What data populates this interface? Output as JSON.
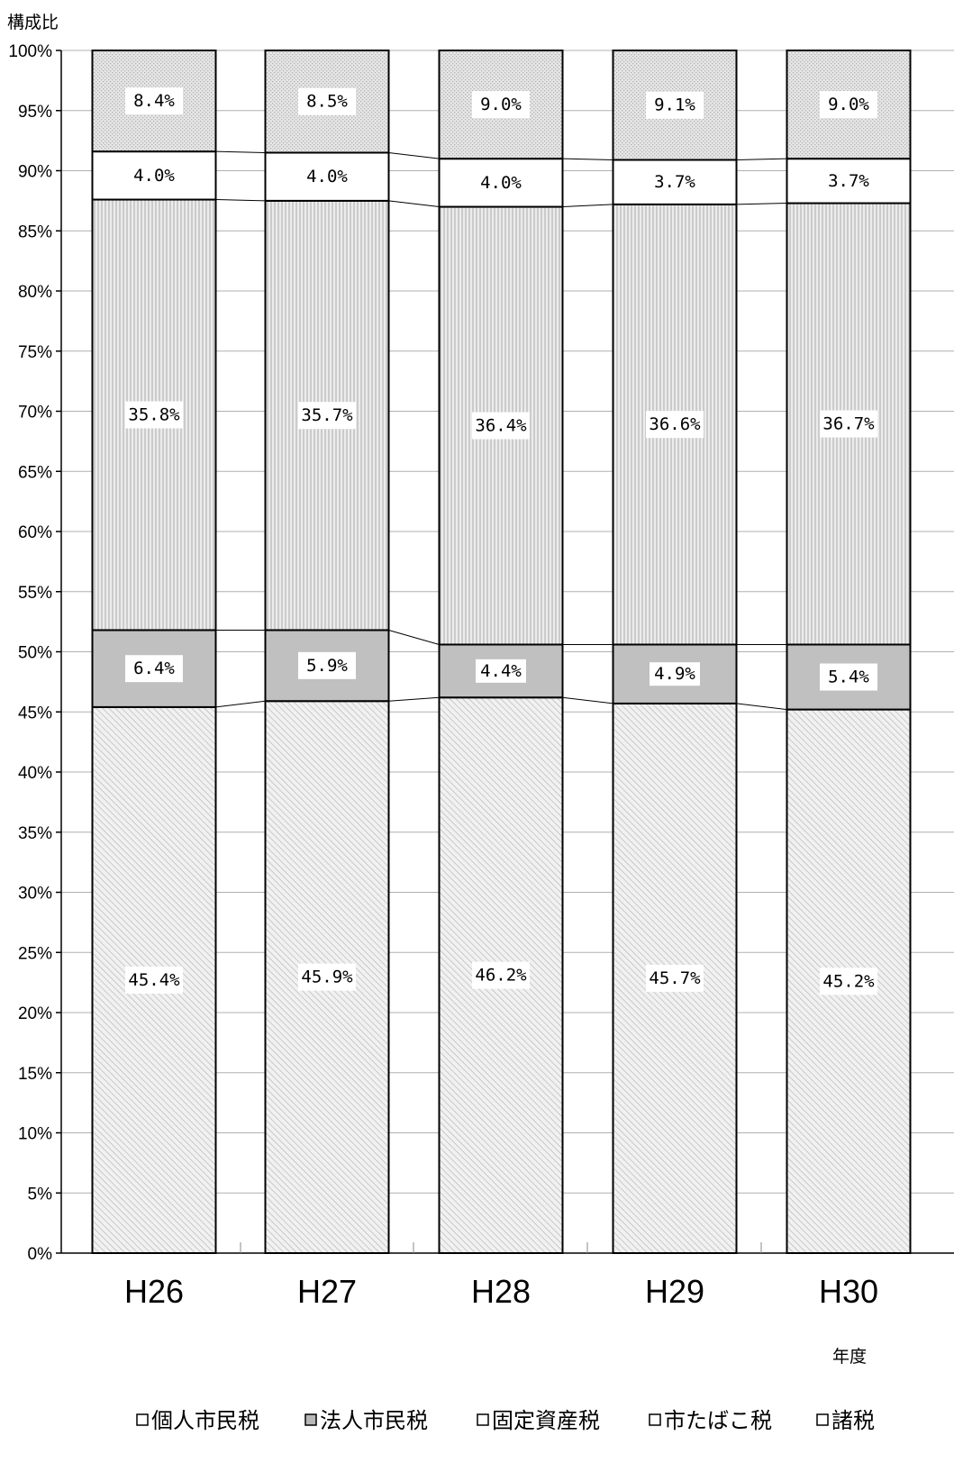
{
  "chart_data": {
    "type": "bar",
    "stacked": true,
    "percent": true,
    "ylabel": "構成比",
    "xlabel": "年度",
    "ylim": [
      0,
      100
    ],
    "yticks": [
      "0%",
      "5%",
      "10%",
      "15%",
      "20%",
      "25%",
      "30%",
      "35%",
      "40%",
      "45%",
      "50%",
      "55%",
      "60%",
      "65%",
      "70%",
      "75%",
      "80%",
      "85%",
      "90%",
      "95%",
      "100%"
    ],
    "grid": true,
    "legend_position": "bottom",
    "categories": [
      "H26",
      "H27",
      "H28",
      "H29",
      "H30"
    ],
    "series": [
      {
        "name": "個人市民税",
        "values": [
          45.4,
          45.9,
          46.2,
          45.7,
          45.2
        ],
        "labels": [
          "45.4%",
          "45.9%",
          "46.2%",
          "45.7%",
          "45.2%"
        ],
        "color": "#e8e8e8",
        "pattern": "diag"
      },
      {
        "name": "法人市民税",
        "values": [
          6.4,
          5.9,
          4.4,
          4.9,
          5.4
        ],
        "labels": [
          "6.4%",
          "5.9%",
          "4.4%",
          "4.9%",
          "5.4%"
        ],
        "color": "#c0c0c0",
        "pattern": "solid"
      },
      {
        "name": "固定資産税",
        "values": [
          35.8,
          35.7,
          36.4,
          36.6,
          36.7
        ],
        "labels": [
          "35.8%",
          "35.7%",
          "36.4%",
          "36.6%",
          "36.7%"
        ],
        "color": "#e4e4e4",
        "pattern": "vert"
      },
      {
        "name": "市たばこ税",
        "values": [
          4.0,
          4.0,
          4.0,
          3.7,
          3.7
        ],
        "labels": [
          "4.0%",
          "4.0%",
          "4.0%",
          "3.7%",
          "3.7%"
        ],
        "color": "#ffffff",
        "pattern": "none"
      },
      {
        "name": "諸税",
        "values": [
          8.4,
          8.5,
          9.0,
          9.1,
          9.0
        ],
        "labels": [
          "8.4%",
          "8.5%",
          "9.0%",
          "9.1%",
          "9.0%"
        ],
        "color": "#e2e2e2",
        "pattern": "dots"
      }
    ]
  }
}
